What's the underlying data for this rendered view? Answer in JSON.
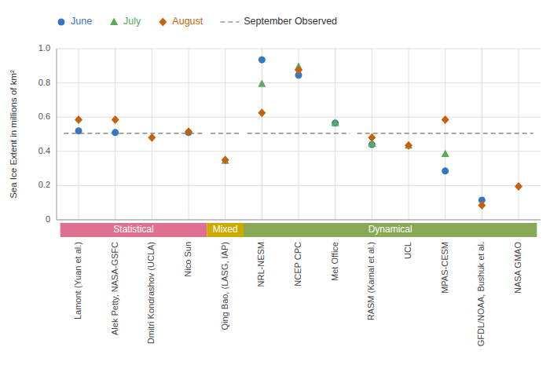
{
  "chart_data": {
    "type": "scatter",
    "ylabel": "Sea Ice Extent in millions of km²",
    "categories": [
      "Lamont (Yuan et al.)",
      "Alek Petty, NASA-GSFC",
      "Dmitri Kondrashov (UCLA)",
      "Nico Sun",
      "Qing Bao, (LASG, IAP)",
      "NRL-NESM",
      "NCEP CPC",
      "Met Office",
      "RASM (Kamal et al.)",
      "UCL",
      "MPAS-CESM",
      "GFDL/NOAA, Bushuk et al.",
      "NASA GMAO"
    ],
    "series": [
      {
        "name": "June",
        "color": "#3777c0",
        "marker": "circle",
        "values": [
          0.52,
          0.51,
          null,
          0.51,
          null,
          0.935,
          0.845,
          0.565,
          0.44,
          null,
          0.285,
          0.115,
          null
        ]
      },
      {
        "name": "July",
        "color": "#5aab5a",
        "marker": "triangle",
        "values": [
          null,
          null,
          null,
          null,
          0.345,
          0.795,
          0.895,
          0.565,
          0.445,
          0.435,
          0.385,
          null,
          null
        ]
      },
      {
        "name": "August",
        "color": "#c8620a",
        "marker": "diamond",
        "values": [
          0.585,
          0.585,
          0.48,
          0.515,
          0.35,
          0.625,
          0.875,
          null,
          0.48,
          0.435,
          0.585,
          0.085,
          0.195
        ]
      },
      {
        "name": "September Observed",
        "type": "line",
        "line_style": "dashed",
        "color": "#999999",
        "values": [
          0.505,
          0.505,
          0.505,
          0.505,
          0.505,
          0.505,
          0.505,
          0.505,
          0.505,
          0.505,
          0.505,
          0.505,
          0.505
        ],
        "segments": [
          [
            0,
            3
          ],
          [
            4,
            4
          ],
          [
            5,
            7
          ],
          [
            8,
            12
          ]
        ]
      }
    ],
    "category_groups": [
      {
        "label": "Statistical",
        "start": 0,
        "end": 3,
        "color": "#e07090"
      },
      {
        "label": "Mixed",
        "start": 4,
        "end": 4,
        "color": "#ccaa00"
      },
      {
        "label": "Dynamical",
        "start": 5,
        "end": 12,
        "color": "#88aa55"
      }
    ],
    "ylim": [
      0.0,
      1.0
    ],
    "yticks": [
      0,
      0.2,
      0.4,
      0.6,
      0.8,
      {
        "value": 1.0,
        "label": "1.0"
      }
    ],
    "grid": true,
    "legend": "top"
  }
}
